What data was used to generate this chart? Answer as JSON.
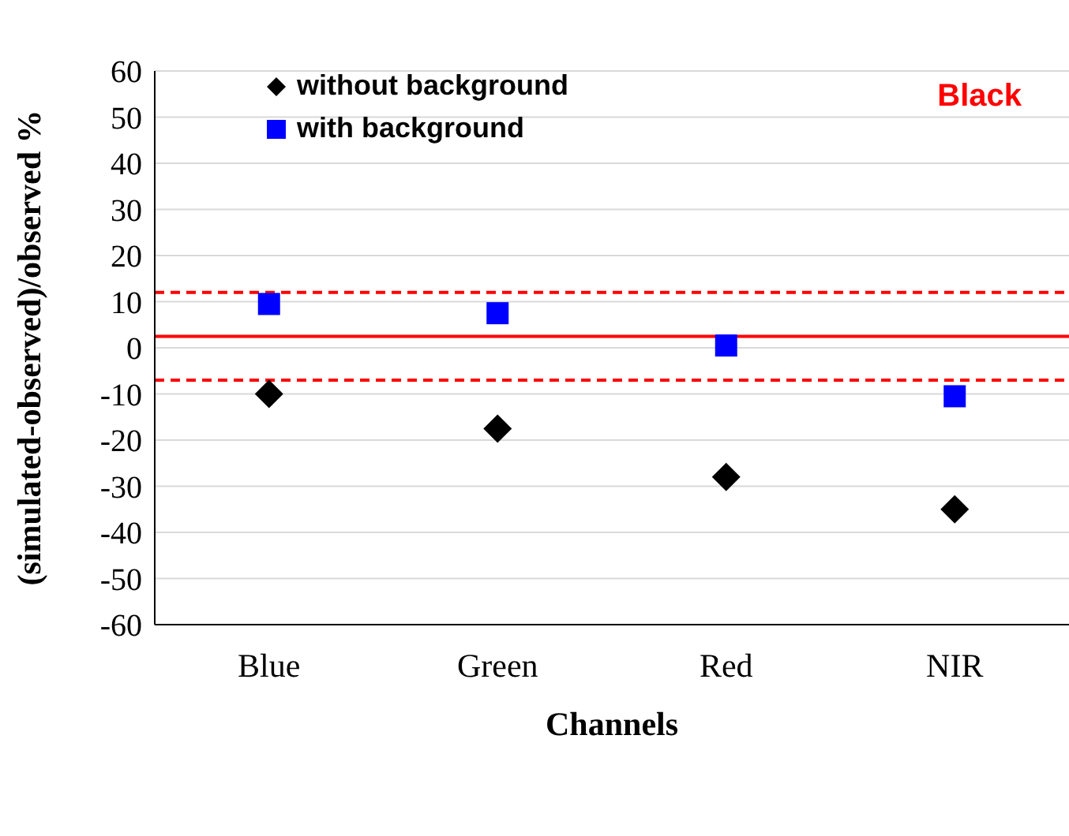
{
  "chart_data": {
    "type": "scatter",
    "xlabel": "Channels",
    "ylabel": "(simulated-observed)/observed %",
    "categories": [
      "Blue",
      "Green",
      "Red",
      "NIR"
    ],
    "series": [
      {
        "name": "without background",
        "color": "#000000",
        "marker": "diamond",
        "values": [
          -10,
          -17.5,
          -28,
          -35
        ]
      },
      {
        "name": "with background",
        "color": "#0000ff",
        "marker": "square",
        "values": [
          9.5,
          7.5,
          0.5,
          -10.5
        ]
      }
    ],
    "ylim": [
      -60,
      60
    ],
    "yticks": [
      -60,
      -50,
      -40,
      -30,
      -20,
      -10,
      0,
      10,
      20,
      30,
      40,
      50,
      60
    ],
    "grid": "y",
    "legend": "top left",
    "ref_lines": [
      {
        "axis": "y",
        "value": 2.5,
        "color": "#ff0000",
        "line_style": "solid"
      },
      {
        "axis": "y",
        "value": 12,
        "color": "#ff0000",
        "line_style": "dashed"
      },
      {
        "axis": "y",
        "value": -7,
        "color": "#ff0000",
        "line_style": "dashed"
      }
    ],
    "annotations": [
      "Black"
    ]
  }
}
